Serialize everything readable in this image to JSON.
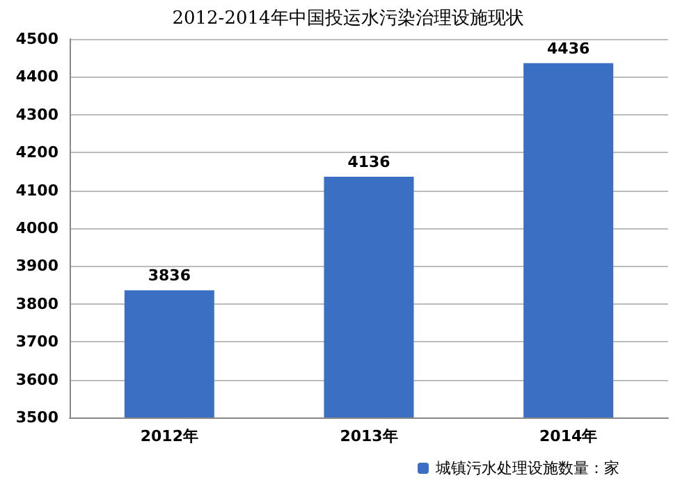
{
  "chart_data": {
    "type": "bar",
    "title": "2012-2014年中国投运水污染治理设施现状",
    "categories": [
      "2012年",
      "2013年",
      "2014年"
    ],
    "series": [
      {
        "name": "城镇污水处理设施数量：家",
        "color": "#3a6fc4",
        "values": [
          3836,
          4136,
          4436
        ]
      }
    ],
    "ylim": [
      3500,
      4500
    ],
    "yticks": [
      3500,
      3600,
      3700,
      3800,
      3900,
      4000,
      4100,
      4200,
      4300,
      4400,
      4500
    ],
    "grid": "y",
    "data_labels": true,
    "legend": "bottom"
  }
}
